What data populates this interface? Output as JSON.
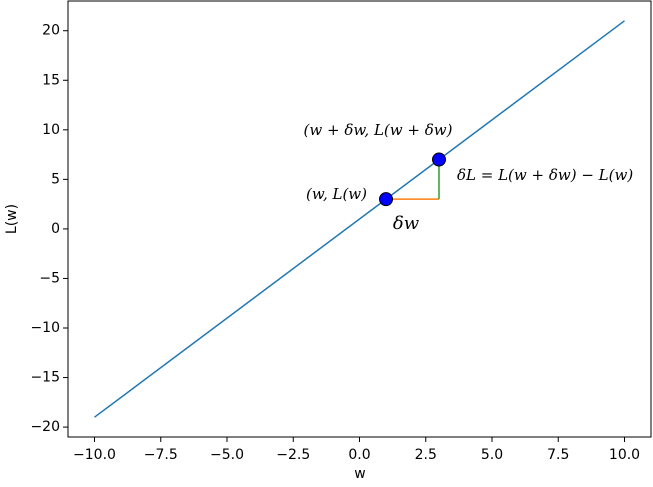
{
  "chart_data": {
    "type": "line",
    "xlabel": "w",
    "ylabel": "L(w)",
    "series": [
      {
        "color": "#1f77b4",
        "x": [
          -10,
          10
        ],
        "values": [
          -19,
          21
        ]
      },
      {
        "color": "#ff7f0e",
        "x": [
          1,
          3
        ],
        "values": [
          3,
          3
        ]
      },
      {
        "color": "#2ca02c",
        "x": [
          3,
          3
        ],
        "values": [
          3,
          7
        ]
      }
    ],
    "points": {
      "color": "#0000ff",
      "x": [
        1,
        3
      ],
      "values": [
        3,
        7
      ]
    },
    "annotations": [
      "(w, L(w)",
      "(w + δw, L(w + δw)",
      "δL = L(w + δw) − L(w)",
      "δw"
    ],
    "xlim": [
      -11,
      11
    ],
    "ylim": [
      -21,
      23
    ],
    "xticks": [
      {
        "value": -10,
        "label": "−10.0"
      },
      {
        "value": -7.5,
        "label": "−7.5"
      },
      {
        "value": -5,
        "label": "−5.0"
      },
      {
        "value": -2.5,
        "label": "−2.5"
      },
      {
        "value": 0,
        "label": "0.0"
      },
      {
        "value": 2.5,
        "label": "2.5"
      },
      {
        "value": 5,
        "label": "5.0"
      },
      {
        "value": 7.5,
        "label": "7.5"
      },
      {
        "value": 10,
        "label": "10.0"
      }
    ],
    "yticks": [
      {
        "value": -20,
        "label": "−20"
      },
      {
        "value": -15,
        "label": "−15"
      },
      {
        "value": -10,
        "label": "−10"
      },
      {
        "value": -5,
        "label": "−5"
      },
      0,
      5,
      10,
      15,
      20
    ]
  }
}
